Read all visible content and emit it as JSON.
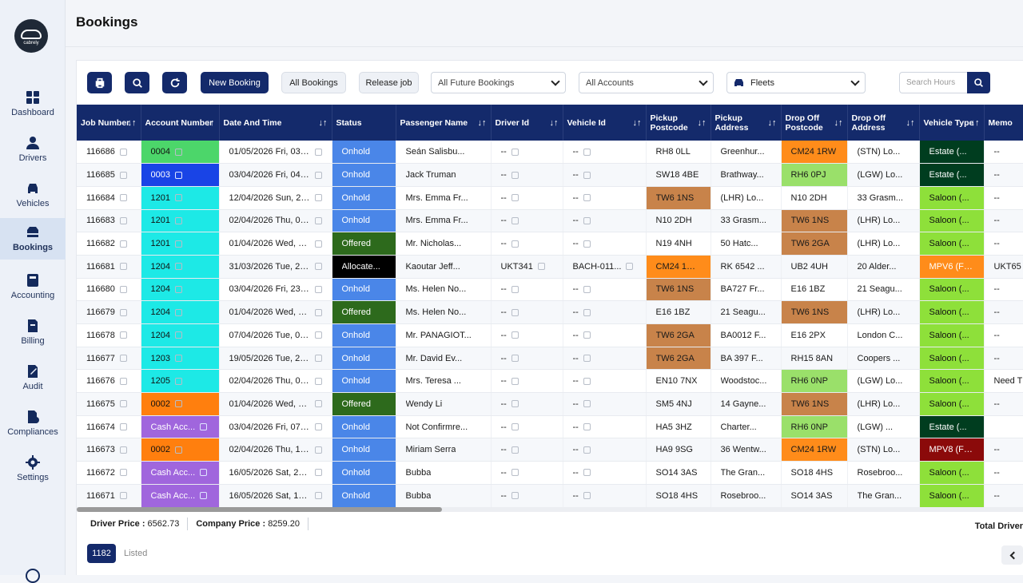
{
  "sidebar": {
    "brand": "cabrely",
    "items": [
      {
        "label": "Dashboard",
        "icon": "dashboard-icon"
      },
      {
        "label": "Drivers",
        "icon": "driver-icon"
      },
      {
        "label": "Vehicles",
        "icon": "car-icon"
      },
      {
        "label": "Bookings",
        "icon": "bookings-icon",
        "active": true
      },
      {
        "label": "Accounting",
        "icon": "accounting-icon"
      },
      {
        "label": "Billing",
        "icon": "billing-icon"
      },
      {
        "label": "Audit",
        "icon": "audit-icon"
      },
      {
        "label": "Compliances",
        "icon": "compliances-icon"
      },
      {
        "label": "Settings",
        "icon": "gear-icon"
      }
    ]
  },
  "page": {
    "title": "Bookings"
  },
  "toolbar": {
    "new_booking": "New Booking",
    "all_bookings": "All Bookings",
    "release_job": "Release job",
    "future_filter": "All Future Bookings",
    "accounts_filter": "All Accounts",
    "fleets_filter": "Fleets",
    "search_placeholder": "Search Hours"
  },
  "table": {
    "headers": [
      "Job Number",
      "Account Number",
      "Date And Time",
      "Status",
      "Passenger Name",
      "Driver Id",
      "Vehicle Id",
      "Pickup Postcode",
      "Pickup Address",
      "Drop Off Postcode",
      "Drop Off Address",
      "Vehicle Type",
      "Memo"
    ],
    "sort_icon": "↓↑",
    "rows": [
      {
        "job": "116686",
        "account": "0004",
        "account_color": "#4cd66a",
        "account_text": "#111111",
        "date": "01/05/2026 Fri, 03:00",
        "status": "Onhold",
        "status_color": "#4a86e8",
        "passenger": "Seán Salisbu...",
        "driver": "--",
        "vehicle": "--",
        "pickup_pc": "RH8 0LL",
        "pickup_pc_color": "",
        "pickup_addr": "Greenhur...",
        "drop_pc": "CM24 1RW",
        "drop_pc_color": "#ff8c1a",
        "drop_addr": "(STN) Lo...",
        "vtype": "Estate (...",
        "vtype_color": "#003d1f",
        "vtype_text": "#ffffff",
        "memo": "--"
      },
      {
        "job": "116685",
        "account": "0003",
        "account_color": "#1944e6",
        "account_text": "#ffffff",
        "date": "03/04/2026 Fri, 04:30",
        "status": "Onhold",
        "status_color": "#4a86e8",
        "passenger": "Jack Truman",
        "driver": "--",
        "vehicle": "--",
        "pickup_pc": "SW18 4BE",
        "pickup_pc_color": "",
        "pickup_addr": "Brathway...",
        "drop_pc": "RH6 0PJ",
        "drop_pc_color": "#9ae06a",
        "drop_addr": "(LGW) Lo...",
        "vtype": "Estate (...",
        "vtype_color": "#003d1f",
        "vtype_text": "#ffffff",
        "memo": "--"
      },
      {
        "job": "116684",
        "account": "1201",
        "account_color": "#1de9e6",
        "account_text": "#111111",
        "date": "12/04/2026 Sun, 20:30",
        "status": "Onhold",
        "status_color": "#4a86e8",
        "passenger": "Mrs. Emma Fr...",
        "driver": "--",
        "vehicle": "--",
        "pickup_pc": "TW6 1NS",
        "pickup_pc_color": "#c8834a",
        "pickup_addr": "(LHR) Lo...",
        "drop_pc": "N10 2DH",
        "drop_pc_color": "",
        "drop_addr": "33 Grasm...",
        "vtype": "Saloon (...",
        "vtype_color": "#8ee03a",
        "vtype_text": "#111111",
        "memo": "--"
      },
      {
        "job": "116683",
        "account": "1201",
        "account_color": "#1de9e6",
        "account_text": "#111111",
        "date": "02/04/2026 Thu, 09:50",
        "status": "Onhold",
        "status_color": "#4a86e8",
        "passenger": "Mrs. Emma Fr...",
        "driver": "--",
        "vehicle": "--",
        "pickup_pc": "N10 2DH",
        "pickup_pc_color": "",
        "pickup_addr": "33 Grasm...",
        "drop_pc": "TW6 1NS",
        "drop_pc_color": "#c8834a",
        "drop_addr": "(LHR) Lo...",
        "vtype": "Saloon (...",
        "vtype_color": "#8ee03a",
        "vtype_text": "#111111",
        "memo": "--"
      },
      {
        "job": "116682",
        "account": "1201",
        "account_color": "#1de9e6",
        "account_text": "#111111",
        "date": "01/04/2026 Wed, 04:00",
        "status": "Offered",
        "status_color": "#2d6a1c",
        "passenger": "Mr. Nicholas...",
        "driver": "--",
        "vehicle": "--",
        "pickup_pc": "N19 4NH",
        "pickup_pc_color": "",
        "pickup_addr": "50 Hatc...",
        "drop_pc": "TW6 2GA",
        "drop_pc_color": "#c8834a",
        "drop_addr": "(LHR) Lo...",
        "vtype": "Saloon (...",
        "vtype_color": "#8ee03a",
        "vtype_text": "#111111",
        "memo": "--"
      },
      {
        "job": "116681",
        "account": "1204",
        "account_color": "#1de9e6",
        "account_text": "#111111",
        "date": "31/03/2026 Tue, 23:45",
        "status": "Allocate...",
        "status_color": "#000000",
        "passenger": "Kaoutar Jeff...",
        "driver": "UKT341",
        "vehicle": "BACH-011...",
        "pickup_pc": "CM24 1RW",
        "pickup_pc_color": "#ff8c1a",
        "pickup_addr": "RK 6542 ...",
        "drop_pc": "UB2 4UH",
        "drop_pc_color": "",
        "drop_addr": "20 Alder...",
        "vtype": "MPV6 (Fo...",
        "vtype_color": "#ff8c1a",
        "vtype_text": "#ffffff",
        "memo": "UKT65"
      },
      {
        "job": "116680",
        "account": "1204",
        "account_color": "#1de9e6",
        "account_text": "#111111",
        "date": "03/04/2026 Fri, 23:15",
        "status": "Onhold",
        "status_color": "#4a86e8",
        "passenger": "Ms. Helen No...",
        "driver": "--",
        "vehicle": "--",
        "pickup_pc": "TW6 1NS",
        "pickup_pc_color": "#c8834a",
        "pickup_addr": "BA727 Fr...",
        "drop_pc": "E16 1BZ",
        "drop_pc_color": "",
        "drop_addr": "21 Seagu...",
        "vtype": "Saloon (...",
        "vtype_color": "#8ee03a",
        "vtype_text": "#111111",
        "memo": "--"
      },
      {
        "job": "116679",
        "account": "1204",
        "account_color": "#1de9e6",
        "account_text": "#111111",
        "date": "01/04/2026 Wed, 04:00",
        "status": "Offered",
        "status_color": "#2d6a1c",
        "passenger": "Ms. Helen No...",
        "driver": "--",
        "vehicle": "--",
        "pickup_pc": "E16 1BZ",
        "pickup_pc_color": "",
        "pickup_addr": "21 Seagu...",
        "drop_pc": "TW6 1NS",
        "drop_pc_color": "#c8834a",
        "drop_addr": "(LHR) Lo...",
        "vtype": "Saloon (...",
        "vtype_color": "#8ee03a",
        "vtype_text": "#111111",
        "memo": "--"
      },
      {
        "job": "116678",
        "account": "1204",
        "account_color": "#1de9e6",
        "account_text": "#111111",
        "date": "07/04/2026 Tue, 07:10",
        "status": "Onhold",
        "status_color": "#4a86e8",
        "passenger": "Mr. PANAGIOT...",
        "driver": "--",
        "vehicle": "--",
        "pickup_pc": "TW6 2GA",
        "pickup_pc_color": "#c8834a",
        "pickup_addr": "BA0012 F...",
        "drop_pc": "E16 2PX",
        "drop_pc_color": "",
        "drop_addr": "London C...",
        "vtype": "Saloon (...",
        "vtype_color": "#8ee03a",
        "vtype_text": "#111111",
        "memo": "--"
      },
      {
        "job": "116677",
        "account": "1203",
        "account_color": "#1de9e6",
        "account_text": "#111111",
        "date": "19/05/2026 Tue, 22:05",
        "status": "Onhold",
        "status_color": "#4a86e8",
        "passenger": "Mr. David Ev...",
        "driver": "--",
        "vehicle": "--",
        "pickup_pc": "TW6 2GA",
        "pickup_pc_color": "#c8834a",
        "pickup_addr": "BA 397 F...",
        "drop_pc": "RH15 8AN",
        "drop_pc_color": "",
        "drop_addr": "Coopers ...",
        "vtype": "Saloon (...",
        "vtype_color": "#8ee03a",
        "vtype_text": "#111111",
        "memo": "--"
      },
      {
        "job": "116676",
        "account": "1205",
        "account_color": "#1de9e6",
        "account_text": "#111111",
        "date": "02/04/2026 Thu, 08:00",
        "status": "Onhold",
        "status_color": "#4a86e8",
        "passenger": "Mrs. Teresa ...",
        "driver": "--",
        "vehicle": "--",
        "pickup_pc": "EN10 7NX",
        "pickup_pc_color": "",
        "pickup_addr": "Woodstoc...",
        "drop_pc": "RH6 0NP",
        "drop_pc_color": "#9ae06a",
        "drop_addr": "(LGW) Lo...",
        "vtype": "Saloon (...",
        "vtype_color": "#8ee03a",
        "vtype_text": "#111111",
        "memo": "Need T"
      },
      {
        "job": "116675",
        "account": "0002",
        "account_color": "#ff7f0e",
        "account_text": "#111111",
        "date": "01/04/2026 Wed, 16:20",
        "status": "Offered",
        "status_color": "#2d6a1c",
        "passenger": "Wendy Li",
        "driver": "--",
        "vehicle": "--",
        "pickup_pc": "SM5 4NJ",
        "pickup_pc_color": "",
        "pickup_addr": "14 Gayne...",
        "drop_pc": "TW6 1NS",
        "drop_pc_color": "#c8834a",
        "drop_addr": "(LHR) Lo...",
        "vtype": "Saloon (...",
        "vtype_color": "#8ee03a",
        "vtype_text": "#111111",
        "memo": "--"
      },
      {
        "job": "116674",
        "account": "Cash Acc...",
        "account_color": "#a066dd",
        "account_text": "#ffffff",
        "date": "03/04/2026 Fri, 07:15",
        "status": "Onhold",
        "status_color": "#4a86e8",
        "passenger": "Not Confirmre...",
        "driver": "--",
        "vehicle": "--",
        "pickup_pc": "HA5 3HZ",
        "pickup_pc_color": "",
        "pickup_addr": "Charter...",
        "drop_pc": "RH6 0NP",
        "drop_pc_color": "#9ae06a",
        "drop_addr": "(LGW) ...",
        "vtype": "Estate (...",
        "vtype_color": "#003d1f",
        "vtype_text": "#ffffff",
        "memo": ""
      },
      {
        "job": "116673",
        "account": "0002",
        "account_color": "#ff7f0e",
        "account_text": "#111111",
        "date": "02/04/2026 Thu, 14:30",
        "status": "Onhold",
        "status_color": "#4a86e8",
        "passenger": "Miriam Serra",
        "driver": "--",
        "vehicle": "--",
        "pickup_pc": "HA9 9SG",
        "pickup_pc_color": "",
        "pickup_addr": "36 Wentw...",
        "drop_pc": "CM24 1RW",
        "drop_pc_color": "#ff8c1a",
        "drop_addr": "(STN) Lo...",
        "vtype": "MPV8 (Fo...",
        "vtype_color": "#8b0a0a",
        "vtype_text": "#ffffff",
        "memo": "--"
      },
      {
        "job": "116672",
        "account": "Cash Acc...",
        "account_color": "#a066dd",
        "account_text": "#ffffff",
        "date": "16/05/2026 Sat, 23:00",
        "status": "Onhold",
        "status_color": "#4a86e8",
        "passenger": "Bubba",
        "driver": "--",
        "vehicle": "--",
        "pickup_pc": "SO14 3AS",
        "pickup_pc_color": "",
        "pickup_addr": "The Gran...",
        "drop_pc": "SO18 4HS",
        "drop_pc_color": "",
        "drop_addr": "Rosebroo...",
        "vtype": "Saloon (...",
        "vtype_color": "#8ee03a",
        "vtype_text": "#111111",
        "memo": "--"
      },
      {
        "job": "116671",
        "account": "Cash Acc...",
        "account_color": "#a066dd",
        "account_text": "#ffffff",
        "date": "16/05/2026 Sat, 14:00",
        "status": "Onhold",
        "status_color": "#4a86e8",
        "passenger": "Bubba",
        "driver": "--",
        "vehicle": "--",
        "pickup_pc": "SO18 4HS",
        "pickup_pc_color": "",
        "pickup_addr": "Rosebroo...",
        "drop_pc": "SO14 3AS",
        "drop_pc_color": "",
        "drop_addr": "The Gran...",
        "vtype": "Saloon (...",
        "vtype_color": "#8ee03a",
        "vtype_text": "#111111",
        "memo": "--"
      }
    ]
  },
  "footer": {
    "driver_price_label": "Driver Price :",
    "driver_price": "6562.73",
    "company_price_label": "Company Price :",
    "company_price": "8259.20",
    "total_driver": "Total Driver",
    "count": "1182",
    "listed": "Listed"
  }
}
